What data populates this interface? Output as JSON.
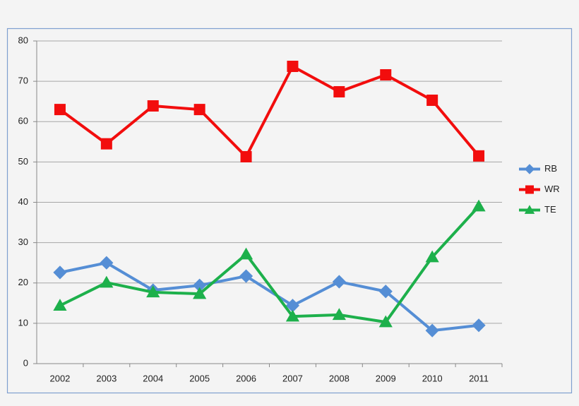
{
  "chart_data": {
    "type": "line",
    "categories": [
      "2002",
      "2003",
      "2004",
      "2005",
      "2006",
      "2007",
      "2008",
      "2009",
      "2010",
      "2011"
    ],
    "series": [
      {
        "name": "RB",
        "color": "#558ed5",
        "marker": "diamond",
        "values": [
          22.6,
          25,
          18.2,
          19.4,
          21.7,
          14.4,
          20.3,
          17.9,
          8.2,
          9.5
        ]
      },
      {
        "name": "WR",
        "color": "#f20d0d",
        "marker": "square",
        "values": [
          63,
          54.5,
          63.9,
          63,
          51.3,
          73.7,
          67.4,
          71.6,
          65.3,
          51.5
        ]
      },
      {
        "name": "TE",
        "color": "#1db04b",
        "marker": "triangle",
        "values": [
          14.4,
          20.1,
          17.7,
          17.3,
          27.1,
          11.7,
          12.1,
          10.3,
          26.4,
          39
        ]
      }
    ],
    "ylim": [
      0,
      80
    ],
    "yticks": [
      0,
      10,
      20,
      30,
      40,
      50,
      60,
      70,
      80
    ],
    "grid": true,
    "legend": "right"
  }
}
